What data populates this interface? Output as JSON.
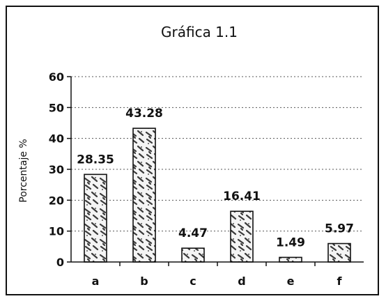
{
  "chart_data": {
    "type": "bar",
    "title": "Gráfica 1.1",
    "ylabel": "Porcentaje %",
    "xlabel": "",
    "categories": [
      "a",
      "b",
      "c",
      "d",
      "e",
      "f"
    ],
    "values": [
      28.35,
      43.28,
      4.47,
      16.41,
      1.49,
      5.97
    ],
    "data_labels": [
      "28.35",
      "43.28",
      "4.47",
      "16.41",
      "1.49",
      "5.97"
    ],
    "yticks": [
      "0",
      "10",
      "20",
      "30",
      "40",
      "50",
      "60"
    ],
    "ylim": [
      0,
      60
    ],
    "grid": "horizontal-dotted",
    "legend": "none",
    "colors": {
      "bar_fill": "#ffffff",
      "bar_texture": "#3a3a3a",
      "stroke": "#111111"
    }
  }
}
